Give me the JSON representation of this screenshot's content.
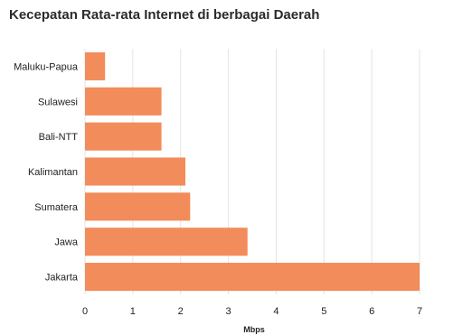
{
  "chart_data": {
    "type": "bar",
    "orientation": "horizontal",
    "title": "Kecepatan Rata-rata Internet di berbagai Daerah",
    "xlabel": "Mbps",
    "ylabel": "",
    "categories": [
      "Maluku-Papua",
      "Sulawesi",
      "Bali-NTT",
      "Kalimantan",
      "Sumatera",
      "Jawa",
      "Jakarta"
    ],
    "values": [
      0.42,
      1.6,
      1.6,
      2.1,
      2.2,
      3.4,
      7.0
    ],
    "xlim": [
      0,
      7
    ],
    "xticks": [
      "0",
      "1",
      "2",
      "3",
      "4",
      "5",
      "6",
      "7"
    ],
    "grid": true,
    "bar_color": "#f28c5a",
    "grid_color": "#e4e4e4"
  }
}
